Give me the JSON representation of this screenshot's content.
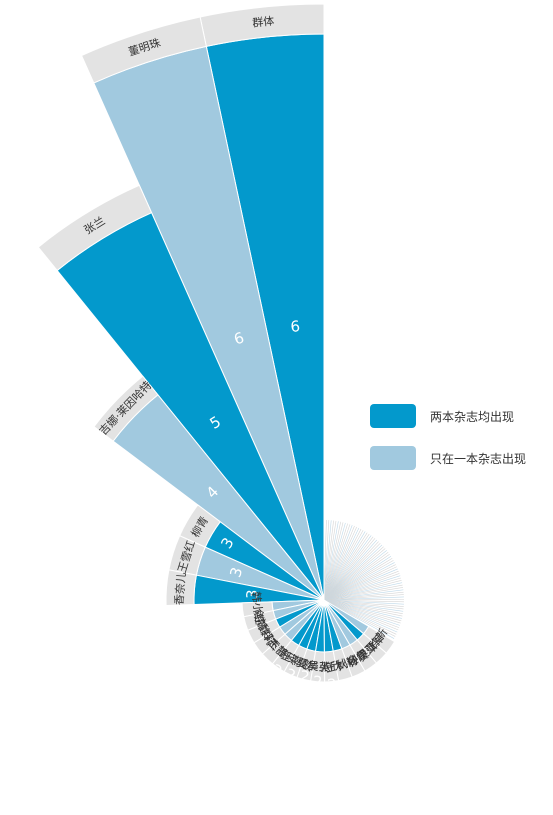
{
  "chart_data": {
    "type": "polar-bar",
    "title": "",
    "value_label_size": "varies",
    "colors": {
      "both": "#0399cc",
      "single": "#a1c9df",
      "label_band": "#e3e3e3",
      "minor": "#d6d6d6"
    },
    "legend": [
      {
        "key": "both",
        "label": "两本杂志均出现"
      },
      {
        "key": "single",
        "label": "只在一本杂志出现"
      }
    ],
    "series": [
      {
        "name": "群体",
        "value": 6,
        "type": "both"
      },
      {
        "name": "董明珠",
        "value": 6,
        "type": "single"
      },
      {
        "name": "张兰",
        "value": 5,
        "type": "both"
      },
      {
        "name": "吉娜·莱因哈特",
        "value": 4,
        "type": "single"
      },
      {
        "name": "柳青",
        "value": 3,
        "type": "both"
      },
      {
        "name": "王雪红",
        "value": 3,
        "type": "single"
      },
      {
        "name": "香奈儿",
        "value": 3,
        "type": "both"
      },
      {
        "name": "韩小红",
        "value": 2,
        "type": "single"
      },
      {
        "name": "俞渝",
        "value": 2,
        "type": "single"
      },
      {
        "name": "宗馥莉",
        "value": 2,
        "type": "both"
      },
      {
        "name": "郑杰",
        "value": 2,
        "type": "single"
      },
      {
        "name": "王静",
        "value": 2,
        "type": "single"
      },
      {
        "name": "王瑛",
        "value": 2,
        "type": "both"
      },
      {
        "name": "王潮歌",
        "value": 2,
        "type": "both"
      },
      {
        "name": "夏华",
        "value": 2,
        "type": "both"
      },
      {
        "name": "吴英",
        "value": 2,
        "type": "both"
      },
      {
        "name": "张欣",
        "value": 2,
        "type": "both"
      },
      {
        "name": "王秋杨",
        "value": 2,
        "type": "both"
      },
      {
        "name": "刘迎霞",
        "value": 2,
        "type": "single"
      },
      {
        "name": "孙伊萍",
        "value": 2,
        "type": "single"
      },
      {
        "name": "吴亚军",
        "value": 2,
        "type": "both"
      },
      {
        "name": "徐新",
        "value": 2,
        "type": "single"
      }
    ]
  }
}
